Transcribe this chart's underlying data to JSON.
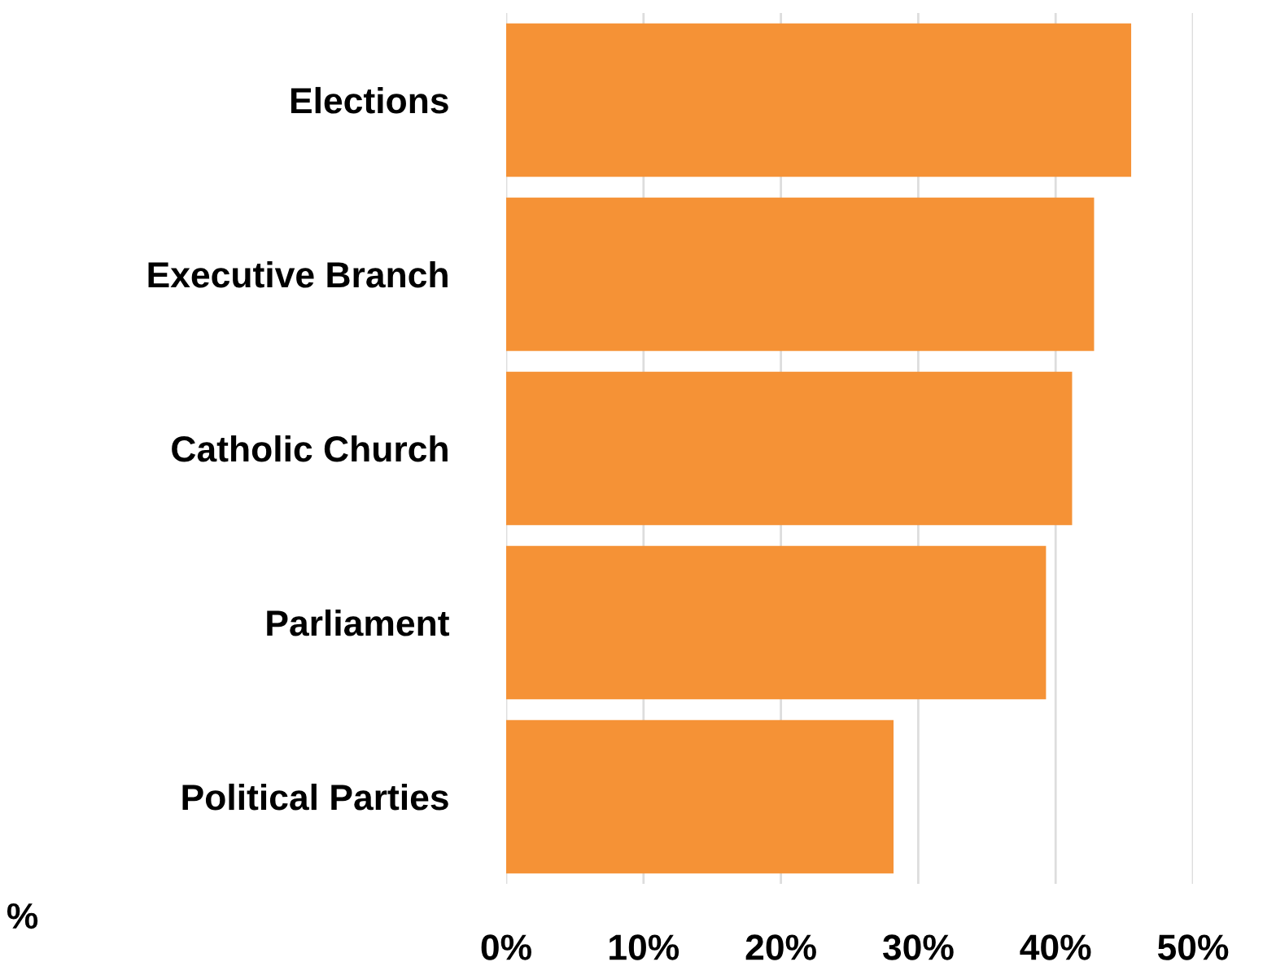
{
  "chart_data": {
    "type": "bar",
    "orientation": "horizontal",
    "categories": [
      "Elections",
      "Executive Branch",
      "Catholic Church",
      "Parliament",
      "Political Parties"
    ],
    "values": [
      45.5,
      42.8,
      41.2,
      39.3,
      28.2
    ],
    "color": "#f59236",
    "xlim": [
      0,
      50
    ],
    "xticks": [
      {
        "value": 0,
        "label": "0%"
      },
      {
        "value": 10,
        "label": "10%"
      },
      {
        "value": 20,
        "label": "20%"
      },
      {
        "value": 30,
        "label": "30%"
      },
      {
        "value": 40,
        "label": "40%"
      },
      {
        "value": 50,
        "label": "50%"
      }
    ],
    "grid": "x",
    "annotations": [
      "%"
    ]
  }
}
